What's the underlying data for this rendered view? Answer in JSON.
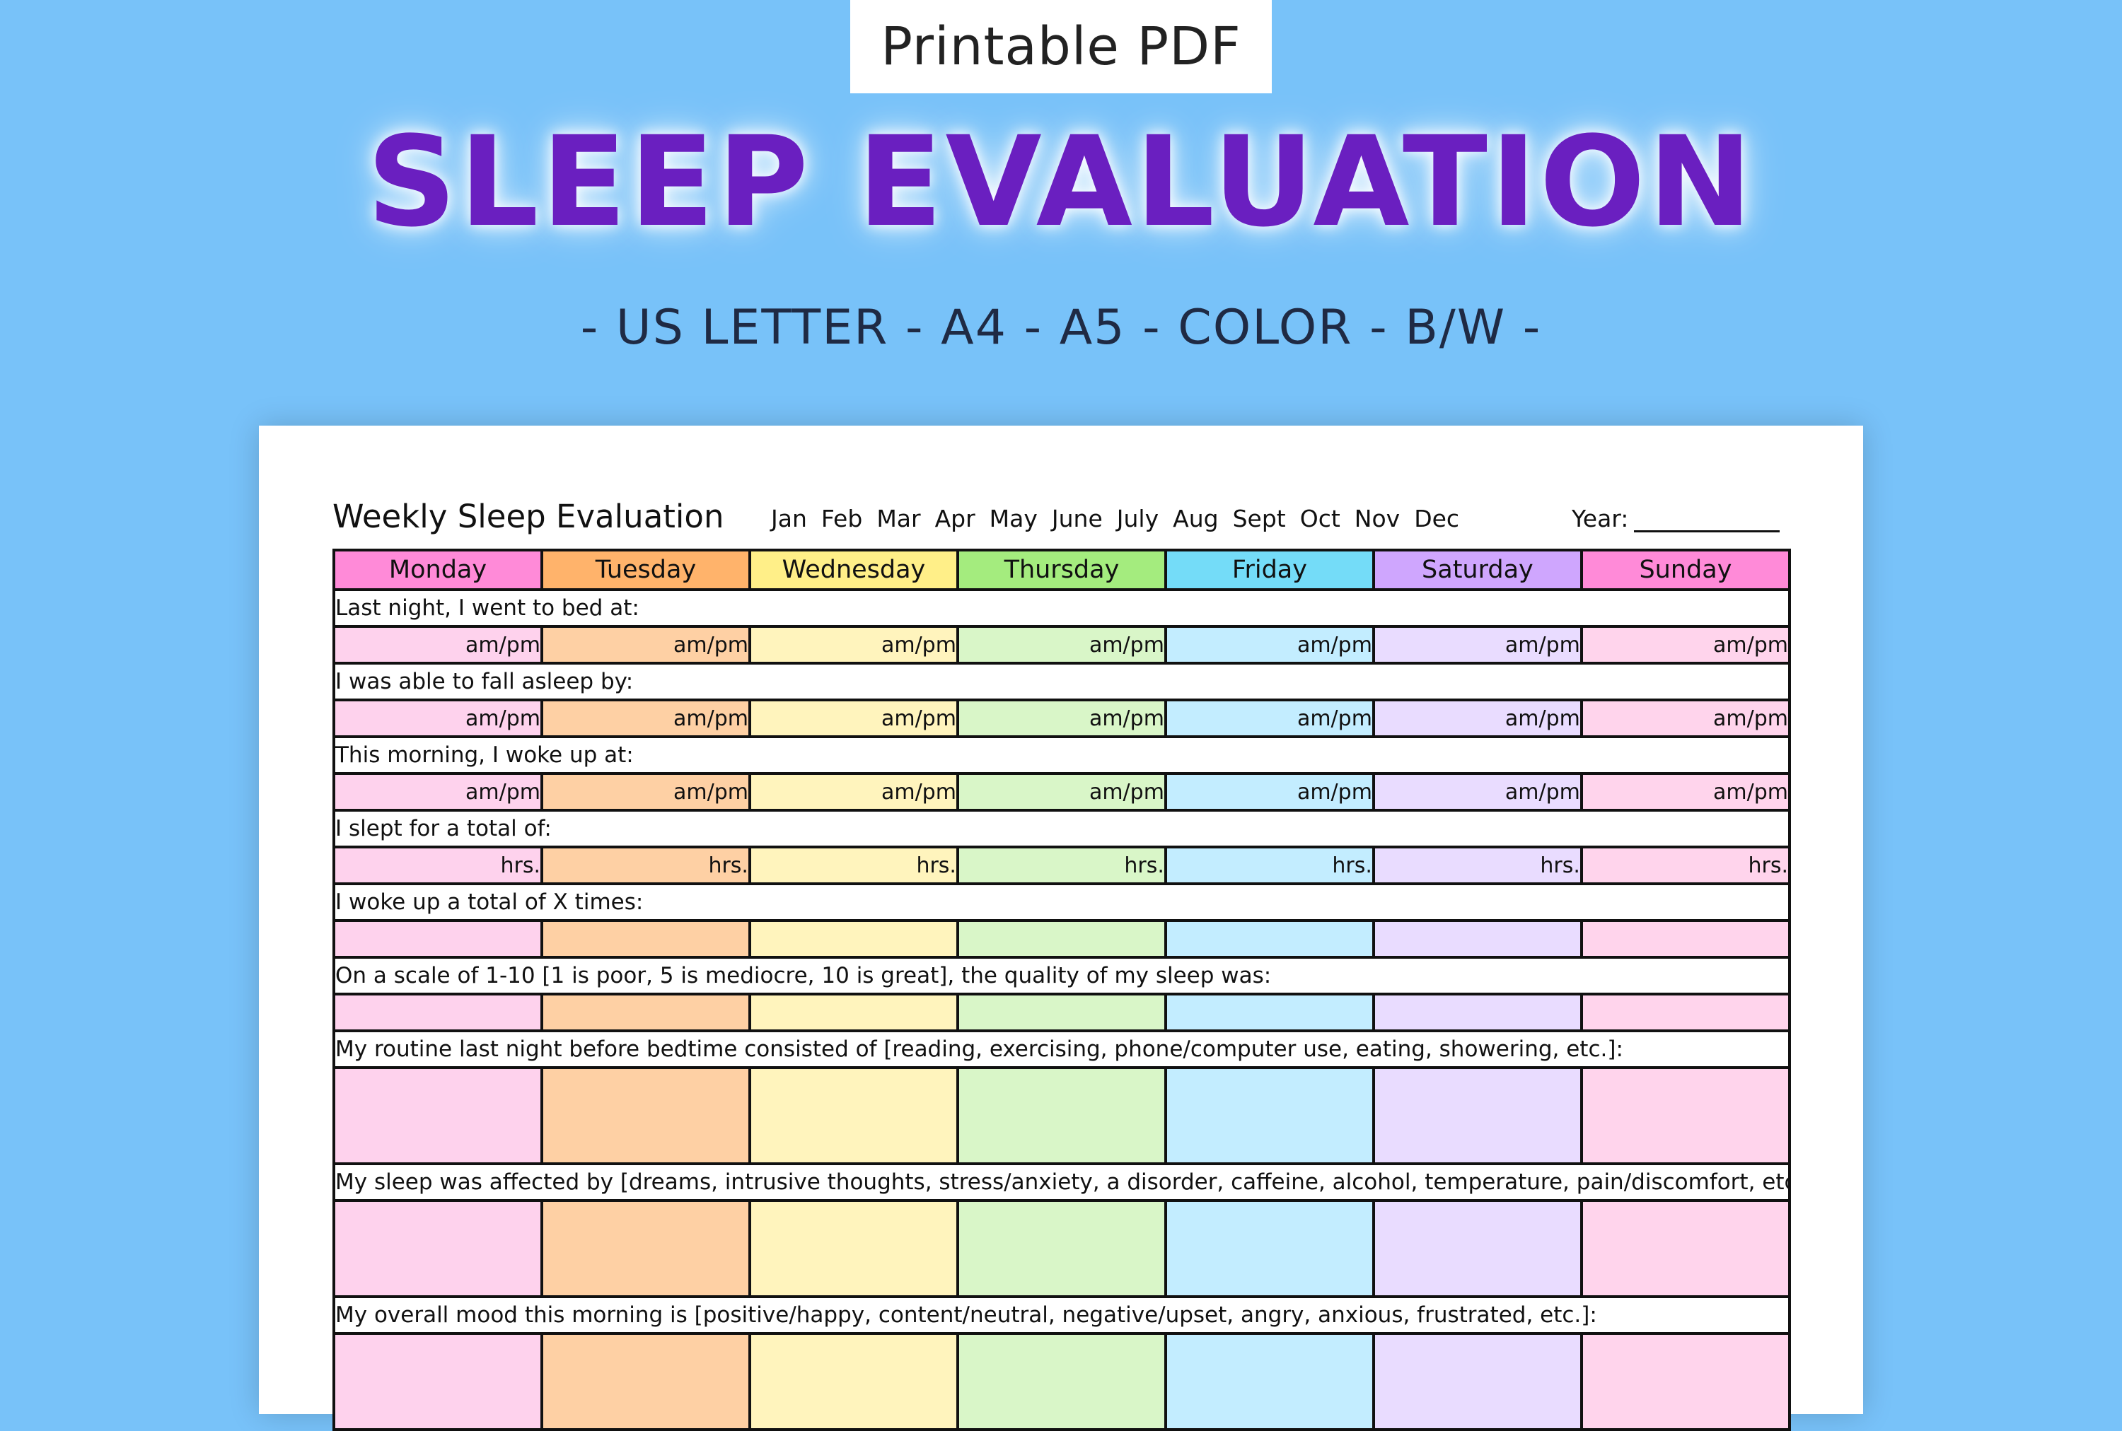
{
  "banner": {
    "badge": "Printable PDF",
    "headline": "SLEEP EVALUATION",
    "formats": "- US LETTER - A4 - A5 - COLOR - B/W -"
  },
  "sheet": {
    "title": "Weekly Sleep Evaluation",
    "months": [
      "Jan",
      "Feb",
      "Mar",
      "Apr",
      "May",
      "June",
      "July",
      "Aug",
      "Sept",
      "Oct",
      "Nov",
      "Dec"
    ],
    "year_label": "Year:",
    "days": [
      "Monday",
      "Tuesday",
      "Wednesday",
      "Thursday",
      "Friday",
      "Saturday",
      "Sunday"
    ],
    "questions": [
      {
        "text": "Last night, I went to bed at:",
        "unit": "am/pm",
        "size": "small"
      },
      {
        "text": "I was able to fall asleep by:",
        "unit": "am/pm",
        "size": "small"
      },
      {
        "text": "This morning, I woke up at:",
        "unit": "am/pm",
        "size": "small"
      },
      {
        "text": "I slept for a total of:",
        "unit": "hrs.",
        "size": "small"
      },
      {
        "text": "I woke up a total of X times:",
        "unit": "",
        "size": "small"
      },
      {
        "text": "On a scale of 1-10 [1 is poor, 5 is mediocre, 10 is great], the quality of my sleep was:",
        "unit": "",
        "size": "small"
      },
      {
        "text": "My routine last night before bedtime consisted of [reading, exercising, phone/computer use, eating, showering, etc.]:",
        "unit": "",
        "size": "big"
      },
      {
        "text": "My sleep was affected by [dreams, intrusive thoughts, stress/anxiety, a disorder, caffeine, alcohol, temperature, pain/discomfort, etc.]:",
        "unit": "",
        "size": "big"
      },
      {
        "text": "My overall mood this morning is [positive/happy, content/neutral, negative/upset, angry, anxious, frustrated, etc.]:",
        "unit": "",
        "size": "big"
      }
    ]
  },
  "colors": {
    "background": "#78c2f9",
    "headline": "#6a1fc0",
    "day_headers": [
      "#ff8ad8",
      "#ffb36b",
      "#ffef88",
      "#a4ec7e",
      "#74dcf8",
      "#cfa6fe",
      "#ff8ad8"
    ],
    "day_cells": [
      "#fed2ed",
      "#fed0a4",
      "#fff4bd",
      "#d9f6c8",
      "#c3edff",
      "#e9dcff",
      "#ffd4ec"
    ]
  }
}
